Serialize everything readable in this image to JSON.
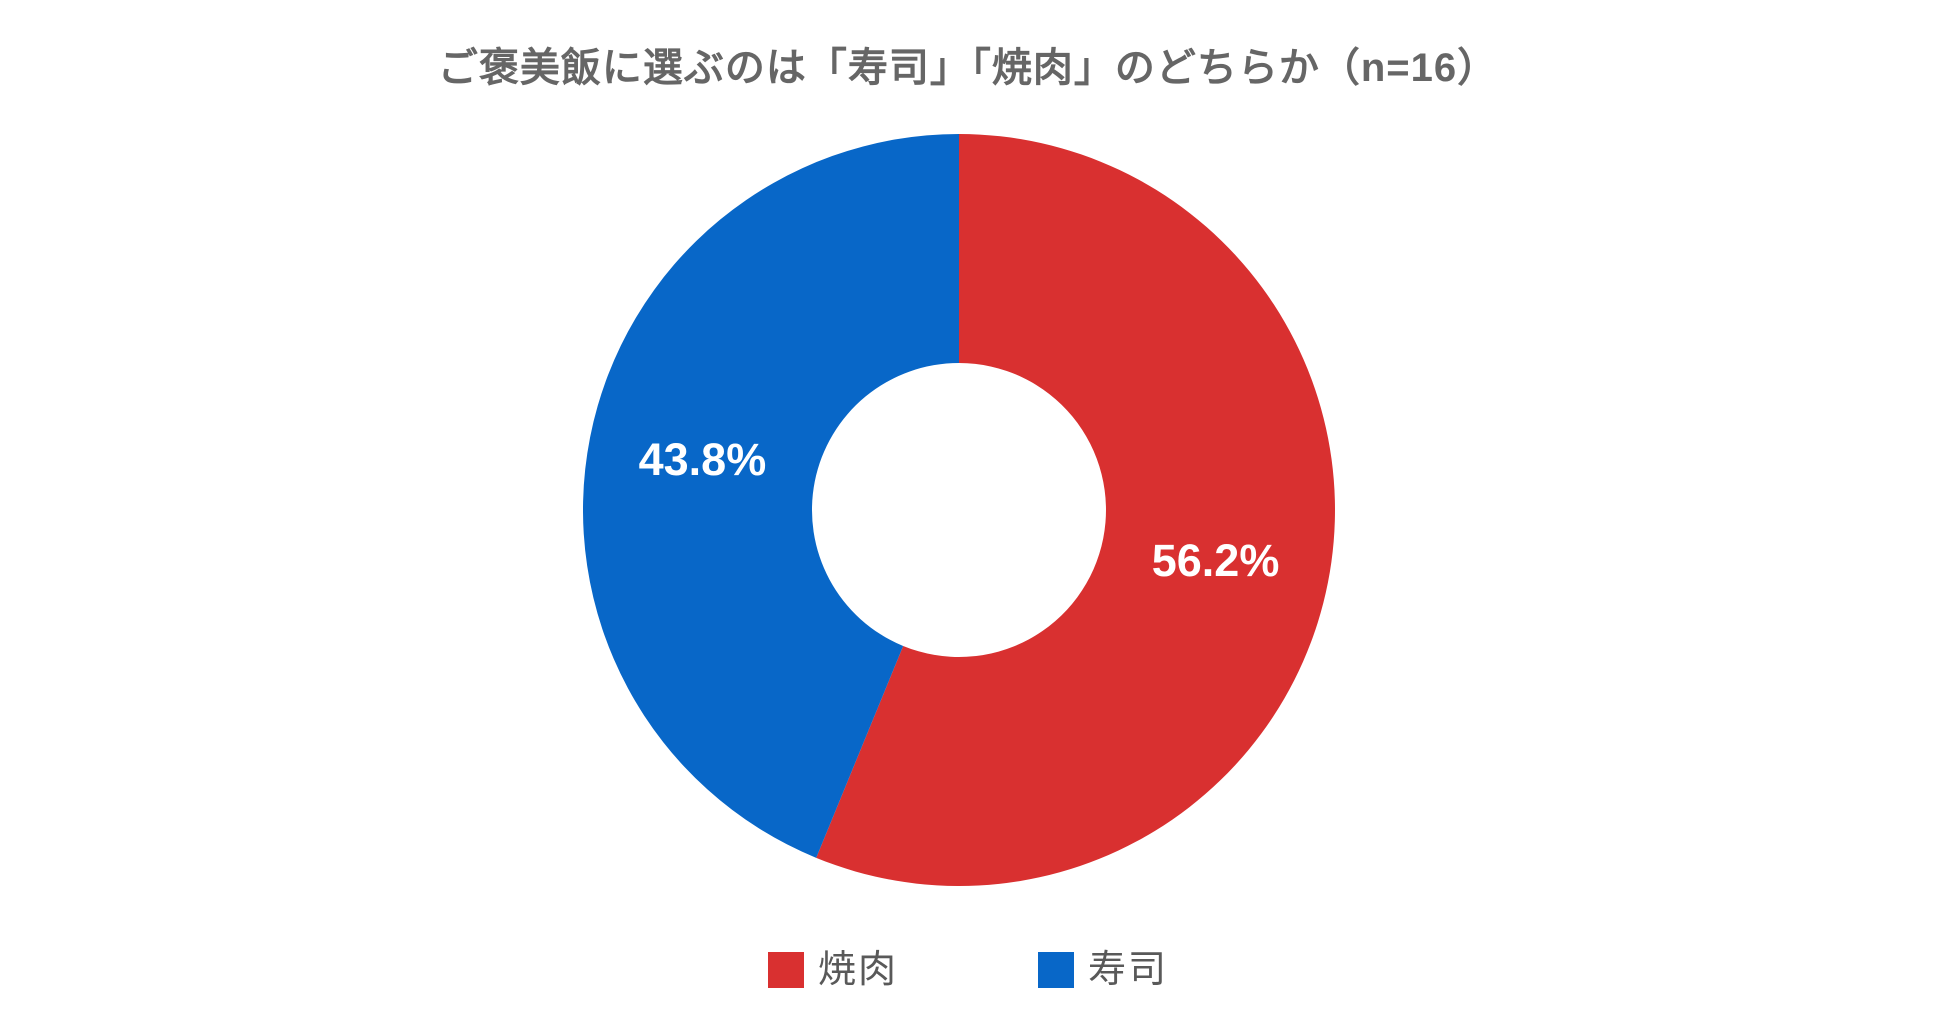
{
  "chart_data": {
    "type": "pie",
    "subtype": "donut",
    "title": "ご褒美飯に選ぶのは「寿司」「焼肉」のどちらか（n=16）",
    "sample_size_label": "n=16",
    "slices": [
      {
        "name": "焼肉",
        "value": 56.2,
        "display_label": "56.2%",
        "color": "#d93030"
      },
      {
        "name": "寿司",
        "value": 43.8,
        "display_label": "43.8%",
        "color": "#0867c8"
      }
    ],
    "start_angle_deg": 0,
    "direction": "clockwise",
    "inner_radius_ratio": 0.39,
    "data_label_color": "#ffffff",
    "legend_position": "bottom",
    "title_color": "#666666",
    "legend_text_color": "#595959",
    "background_color": "#ffffff"
  }
}
